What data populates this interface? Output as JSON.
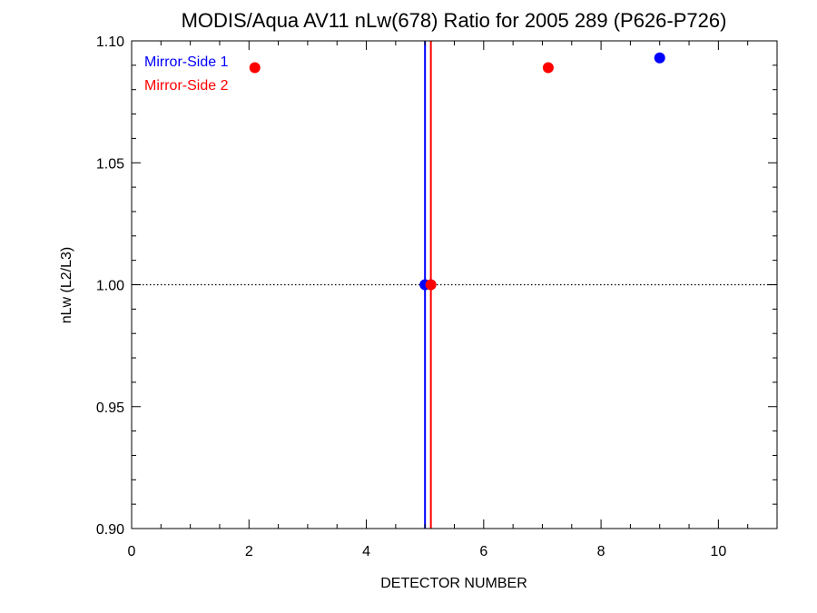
{
  "chart_data": {
    "type": "scatter",
    "title": "MODIS/Aqua AV11 nLw(678) Ratio for 2005 289 (P626-P726)",
    "xlabel": "DETECTOR NUMBER",
    "ylabel": "nLw (L2/L3)",
    "xlim": [
      0,
      11
    ],
    "ylim": [
      0.9,
      1.1
    ],
    "x_ticks": [
      0,
      2,
      4,
      6,
      8,
      10
    ],
    "x_tick_labels": [
      "0",
      "2",
      "4",
      "6",
      "8",
      "10"
    ],
    "y_ticks": [
      0.9,
      0.95,
      1.0,
      1.05,
      1.1
    ],
    "y_tick_labels": [
      "0.90",
      "0.95",
      "1.00",
      "1.05",
      "1.10"
    ],
    "reference_line_y": 1.0,
    "legend_position": "top-left",
    "series": [
      {
        "name": "Mirror-Side 1",
        "color": "#0000ff",
        "vertical_line_x": 5.0,
        "points": [
          {
            "x": 9.0,
            "y": 1.093
          },
          {
            "x": 5.0,
            "y": 1.0
          }
        ]
      },
      {
        "name": "Mirror-Side 2",
        "color": "#ff0000",
        "vertical_line_x": 5.1,
        "points": [
          {
            "x": 2.1,
            "y": 1.089
          },
          {
            "x": 7.1,
            "y": 1.089
          },
          {
            "x": 5.1,
            "y": 1.0
          }
        ]
      }
    ]
  }
}
